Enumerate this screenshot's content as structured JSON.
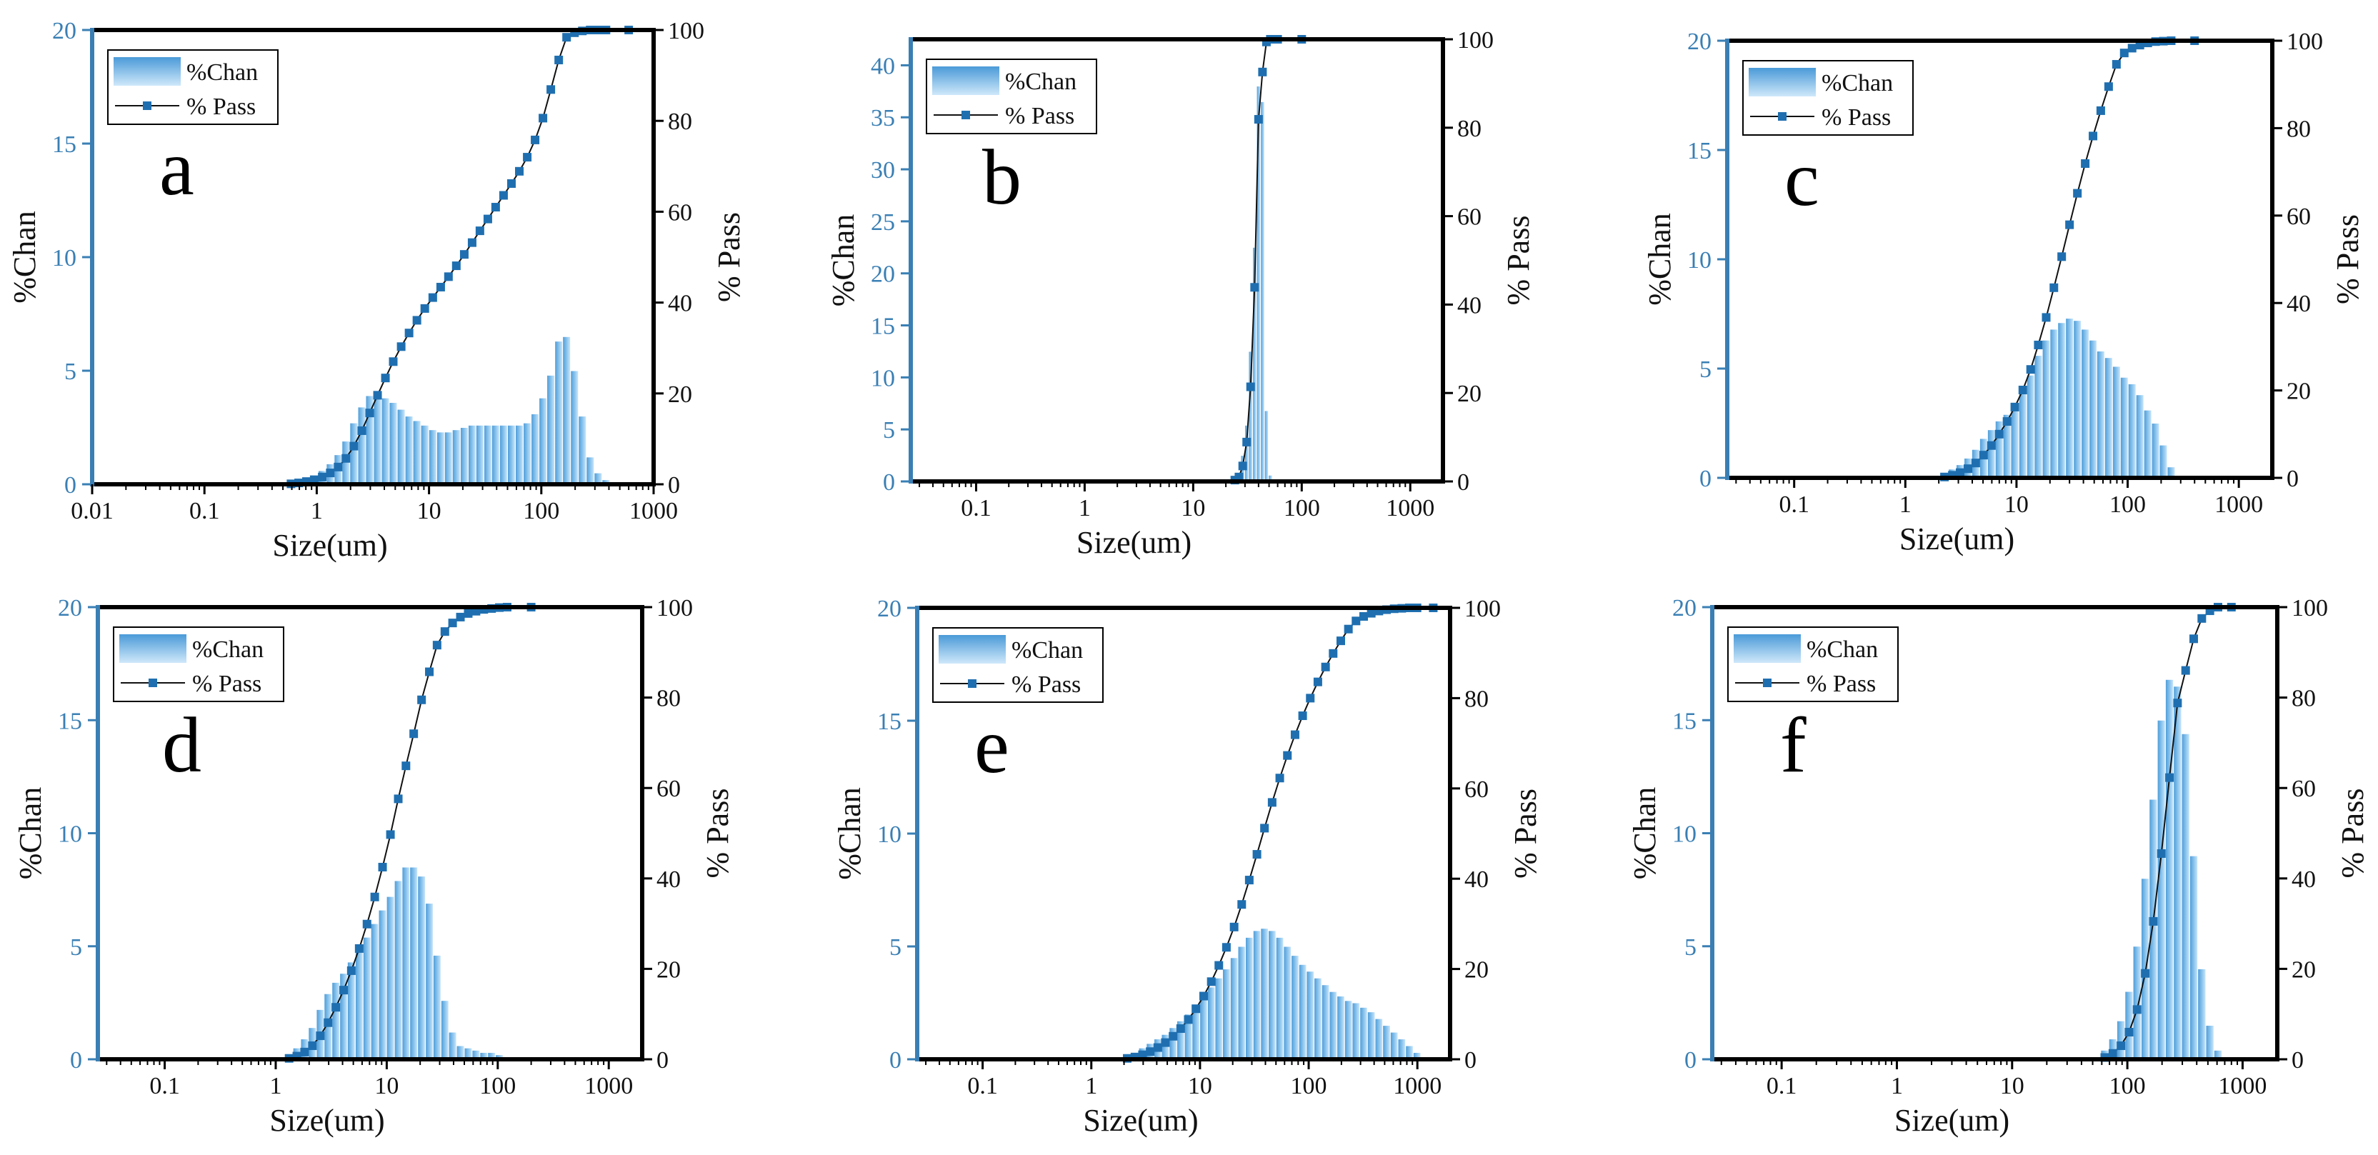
{
  "chart_data": [
    {
      "type": "bar+line",
      "panel_label": "a",
      "xlabel": "Size(um)",
      "ylabel_left": "%Chan",
      "ylabel_right": "% Pass",
      "xscale": "log",
      "xlim": [
        0.01,
        1000
      ],
      "xticks": [
        0.01,
        0.1,
        1,
        10,
        100,
        1000
      ],
      "xtick_labels": [
        "0.01",
        "0.1",
        "1",
        "10",
        "100",
        "1000"
      ],
      "ylim_left": [
        0,
        20
      ],
      "yticks_left": [
        "0",
        "5",
        "10",
        "15",
        "20"
      ],
      "ylim_right": [
        0,
        100
      ],
      "yticks_right": [
        "0",
        "20",
        "40",
        "60",
        "80",
        "100"
      ],
      "legend": [
        "%Chan",
        "% Pass"
      ],
      "series": [
        {
          "name": "%Chan",
          "kind": "bar",
          "x": [
            0.59,
            0.69,
            0.81,
            0.95,
            1.12,
            1.32,
            1.55,
            1.82,
            2.14,
            2.52,
            2.96,
            3.48,
            4.09,
            4.8,
            5.65,
            6.64,
            7.8,
            9.17,
            10.8,
            12.7,
            14.9,
            17.5,
            20.6,
            24.2,
            28.4,
            33.4,
            39.2,
            46.1,
            54.2,
            63.7,
            74.9,
            88,
            103.4,
            121.5,
            142.9,
            167.9,
            197.4,
            232,
            272.6,
            320.5,
            376.6
          ],
          "values": [
            0.1,
            0.2,
            0.3,
            0.4,
            0.6,
            0.9,
            1.3,
            1.9,
            2.7,
            3.4,
            3.9,
            3.9,
            3.8,
            3.6,
            3.3,
            3.0,
            2.8,
            2.6,
            2.4,
            2.3,
            2.3,
            2.4,
            2.5,
            2.6,
            2.6,
            2.6,
            2.6,
            2.6,
            2.6,
            2.6,
            2.7,
            3.1,
            3.8,
            4.8,
            6.3,
            6.5,
            5.0,
            3.0,
            1.2,
            0.5,
            0.2
          ]
        },
        {
          "name": "% Pass",
          "kind": "line",
          "x": [
            0.025,
            0.59,
            0.69,
            0.81,
            0.95,
            1.12,
            1.32,
            1.55,
            1.82,
            2.14,
            2.52,
            2.96,
            3.48,
            4.09,
            4.8,
            5.65,
            6.64,
            7.8,
            9.17,
            10.8,
            12.7,
            14.9,
            17.5,
            20.6,
            24.2,
            28.4,
            33.4,
            39.2,
            46.1,
            54.2,
            63.7,
            74.9,
            88,
            103.4,
            121.5,
            142.9,
            167.9,
            197.4,
            232,
            272.6,
            320.5,
            376.6,
            600,
            1000
          ],
          "values": [
            0,
            0.1,
            0.3,
            0.6,
            1.0,
            1.6,
            2.5,
            3.8,
            5.7,
            8.4,
            11.8,
            15.7,
            19.6,
            23.4,
            27.0,
            30.3,
            33.3,
            36.1,
            38.7,
            41.1,
            43.4,
            45.7,
            48.1,
            50.6,
            53.2,
            55.8,
            58.4,
            61.0,
            63.6,
            66.2,
            68.9,
            72.0,
            75.8,
            80.6,
            86.9,
            93.4,
            98.4,
            99.4,
            99.8,
            100,
            100,
            100,
            100,
            100
          ]
        }
      ]
    },
    {
      "type": "bar+line",
      "panel_label": "b",
      "xlabel": "Size(um)",
      "ylabel_left": "%Chan",
      "ylabel_right": "% Pass",
      "xscale": "log",
      "xlim": [
        0.025,
        2000
      ],
      "xticks": [
        0.1,
        1,
        10,
        100,
        1000
      ],
      "xtick_labels": [
        "0.1",
        "1",
        "10",
        "100",
        "1000"
      ],
      "ylim_left": [
        0,
        42.5
      ],
      "yticks_left": [
        "0",
        "5",
        "10",
        "15",
        "20",
        "25",
        "30",
        "35",
        "40"
      ],
      "ylim_right": [
        0,
        100
      ],
      "yticks_right": [
        "0",
        "20",
        "40",
        "60",
        "80",
        "100"
      ],
      "legend": [
        "%Chan",
        "% Pass"
      ],
      "series": [
        {
          "name": "%Chan",
          "kind": "bar",
          "x": [
            24.2,
            26.4,
            28.6,
            31.1,
            33.8,
            36.8,
            40,
            43.5,
            47.3,
            51.4
          ],
          "values": [
            0.3,
            0.7,
            2.5,
            5.4,
            12.5,
            22.5,
            38.0,
            36.5,
            6.8,
            0.6
          ]
        },
        {
          "name": "% Pass",
          "kind": "line",
          "x": [
            0.025,
            20,
            24.2,
            26.4,
            28.6,
            31.1,
            33.8,
            36.8,
            40,
            43.5,
            47.3,
            51.4,
            60,
            100,
            2000
          ],
          "values": [
            0,
            0,
            0.3,
            1.0,
            3.5,
            8.9,
            21.4,
            43.9,
            81.9,
            92.6,
            99.4,
            100,
            100,
            100,
            100
          ]
        }
      ]
    },
    {
      "type": "bar+line",
      "panel_label": "c",
      "xlabel": "Size(um)",
      "ylabel_left": "%Chan",
      "ylabel_right": "% Pass",
      "xscale": "log",
      "xlim": [
        0.025,
        2000
      ],
      "xticks": [
        0.1,
        1,
        10,
        100,
        1000
      ],
      "xtick_labels": [
        "0.1",
        "1",
        "10",
        "100",
        "1000"
      ],
      "ylim_left": [
        0,
        20
      ],
      "yticks_left": [
        "0",
        "5",
        "10",
        "15",
        "20"
      ],
      "ylim_right": [
        0,
        100
      ],
      "yticks_right": [
        "0",
        "20",
        "40",
        "60",
        "80",
        "100"
      ],
      "legend": [
        "%Chan",
        "% Pass"
      ],
      "series": [
        {
          "name": "%Chan",
          "kind": "bar",
          "x": [
            2.25,
            2.65,
            3.11,
            3.66,
            4.3,
            5.06,
            5.95,
            6.99,
            8.22,
            9.66,
            11.4,
            13.4,
            15.7,
            18.5,
            21.7,
            25.5,
            30,
            35.3,
            41.5,
            48.8,
            57.3,
            67.4,
            79.3,
            93.2,
            109.6,
            128.9,
            151.6,
            178.2,
            209.5,
            246.4
          ],
          "values": [
            0.2,
            0.4,
            0.6,
            0.9,
            1.3,
            1.8,
            2.2,
            2.6,
            2.9,
            3.3,
            3.9,
            4.7,
            5.6,
            6.3,
            6.8,
            7.1,
            7.3,
            7.2,
            6.8,
            6.3,
            5.8,
            5.5,
            5.1,
            4.6,
            4.3,
            3.8,
            3.1,
            2.5,
            1.5,
            0.5
          ]
        },
        {
          "name": "% Pass",
          "kind": "line",
          "x": [
            0.025,
            2.0,
            2.25,
            2.65,
            3.11,
            3.66,
            4.3,
            5.06,
            5.95,
            6.99,
            8.22,
            9.66,
            11.4,
            13.4,
            15.7,
            18.5,
            21.7,
            25.5,
            30,
            35.3,
            41.5,
            48.8,
            57.3,
            67.4,
            79.3,
            93.2,
            109.6,
            128.9,
            151.6,
            178.2,
            209.5,
            246.4,
            400,
            2000
          ],
          "values": [
            0,
            0,
            0.2,
            0.6,
            1.2,
            2.1,
            3.4,
            5.2,
            7.4,
            10.0,
            12.9,
            16.2,
            20.1,
            24.8,
            30.4,
            36.7,
            43.5,
            50.6,
            57.9,
            65.1,
            71.9,
            78.2,
            84.0,
            89.5,
            94.6,
            97.2,
            98.3,
            99.0,
            99.5,
            99.8,
            99.9,
            100,
            100,
            100
          ]
        }
      ]
    },
    {
      "type": "bar+line",
      "panel_label": "d",
      "xlabel": "Size(um)",
      "ylabel_left": "%Chan",
      "ylabel_right": "% Pass",
      "xscale": "log",
      "xlim": [
        0.025,
        2000
      ],
      "xticks": [
        0.1,
        1,
        10,
        100,
        1000
      ],
      "xtick_labels": [
        "0.1",
        "1",
        "10",
        "100",
        "1000"
      ],
      "ylim_left": [
        0,
        20
      ],
      "yticks_left": [
        "0",
        "5",
        "10",
        "15",
        "20"
      ],
      "ylim_right": [
        0,
        100
      ],
      "yticks_right": [
        "0",
        "20",
        "40",
        "60",
        "80",
        "100"
      ],
      "legend": [
        "%Chan",
        "% Pass"
      ],
      "series": [
        {
          "name": "%Chan",
          "kind": "bar",
          "x": [
            1.32,
            1.55,
            1.82,
            2.14,
            2.52,
            2.96,
            3.48,
            4.09,
            4.8,
            5.65,
            6.64,
            7.8,
            9.17,
            10.8,
            12.7,
            14.9,
            17.5,
            20.6,
            24.2,
            28.4,
            33.4,
            39.2,
            46.1,
            54.2,
            63.7,
            74.9,
            88,
            103.4,
            121.5
          ],
          "values": [
            0.2,
            0.5,
            0.9,
            1.4,
            2.2,
            2.9,
            3.4,
            3.8,
            4.3,
            4.9,
            5.4,
            6.0,
            6.6,
            7.2,
            7.9,
            8.5,
            8.5,
            8.1,
            6.9,
            4.6,
            2.6,
            1.2,
            0.6,
            0.5,
            0.4,
            0.3,
            0.3,
            0.2,
            0.1
          ]
        },
        {
          "name": "% Pass",
          "kind": "line",
          "x": [
            0.025,
            1.0,
            1.32,
            1.55,
            1.82,
            2.14,
            2.52,
            2.96,
            3.48,
            4.09,
            4.8,
            5.65,
            6.64,
            7.8,
            9.17,
            10.8,
            12.7,
            14.9,
            17.5,
            20.6,
            24.2,
            28.4,
            33.4,
            39.2,
            46.1,
            54.2,
            63.7,
            74.9,
            88,
            103.4,
            121.5,
            200,
            2000
          ],
          "values": [
            0,
            0,
            0.2,
            0.7,
            1.6,
            3.0,
            5.2,
            8.1,
            11.5,
            15.3,
            19.6,
            24.5,
            29.9,
            35.9,
            42.5,
            49.7,
            57.6,
            64.9,
            72.0,
            79.5,
            85.7,
            91.6,
            94.6,
            96.5,
            97.8,
            98.6,
            99.1,
            99.5,
            99.7,
            99.9,
            100,
            100,
            100
          ]
        }
      ]
    },
    {
      "type": "bar+line",
      "panel_label": "e",
      "xlabel": "Size(um)",
      "ylabel_left": "%Chan",
      "ylabel_right": "% Pass",
      "xscale": "log",
      "xlim": [
        0.025,
        2000
      ],
      "xticks": [
        0.1,
        1,
        10,
        100,
        1000
      ],
      "xtick_labels": [
        "0.1",
        "1",
        "10",
        "100",
        "1000"
      ],
      "ylim_left": [
        0,
        20
      ],
      "yticks_left": [
        "0",
        "5",
        "10",
        "15",
        "20"
      ],
      "ylim_right": [
        0,
        100
      ],
      "yticks_right": [
        "0",
        "20",
        "40",
        "60",
        "80",
        "100"
      ],
      "legend": [
        "%Chan",
        "% Pass"
      ],
      "series": [
        {
          "name": "%Chan",
          "kind": "bar",
          "x": [
            2.14,
            2.52,
            2.96,
            3.48,
            4.09,
            4.8,
            5.65,
            6.64,
            7.8,
            9.17,
            10.8,
            12.7,
            14.9,
            17.5,
            20.6,
            24.2,
            28.4,
            33.4,
            39.2,
            46.1,
            54.2,
            63.7,
            74.9,
            88,
            103.4,
            121.5,
            142.9,
            167.9,
            197.4,
            232,
            272.6,
            320.5,
            376.6,
            442.6,
            520.3,
            611.5,
            718.7,
            844.7,
            992.7
          ],
          "values": [
            0.2,
            0.3,
            0.5,
            0.7,
            0.9,
            1.1,
            1.4,
            1.7,
            2.0,
            2.4,
            2.8,
            3.2,
            3.6,
            4.0,
            4.5,
            5.0,
            5.4,
            5.7,
            5.8,
            5.7,
            5.4,
            5.0,
            4.6,
            4.2,
            3.9,
            3.6,
            3.3,
            3.0,
            2.8,
            2.6,
            2.5,
            2.3,
            2.1,
            1.8,
            1.5,
            1.2,
            0.9,
            0.6,
            0.3
          ]
        },
        {
          "name": "% Pass",
          "kind": "line",
          "x": [
            0.025,
            1.5,
            2.14,
            2.52,
            2.96,
            3.48,
            4.09,
            4.8,
            5.65,
            6.64,
            7.8,
            9.17,
            10.8,
            12.7,
            14.9,
            17.5,
            20.6,
            24.2,
            28.4,
            33.4,
            39.2,
            46.1,
            54.2,
            63.7,
            74.9,
            88,
            103.4,
            121.5,
            142.9,
            167.9,
            197.4,
            232,
            272.6,
            320.5,
            376.6,
            442.6,
            520.3,
            611.5,
            718.7,
            844.7,
            992.7,
            1400,
            2000
          ],
          "values": [
            0,
            0,
            0.2,
            0.5,
            1.0,
            1.7,
            2.6,
            3.7,
            5.1,
            6.8,
            8.8,
            11.2,
            14.0,
            17.2,
            20.8,
            24.8,
            29.3,
            34.3,
            39.7,
            45.4,
            51.2,
            56.9,
            62.3,
            67.3,
            71.9,
            76.1,
            80.0,
            83.6,
            86.9,
            89.9,
            92.7,
            95.3,
            97.1,
            98.1,
            98.8,
            99.3,
            99.6,
            99.8,
            99.9,
            100,
            100,
            100,
            100
          ]
        }
      ]
    },
    {
      "type": "bar+line",
      "panel_label": "f",
      "xlabel": "Size(um)",
      "ylabel_left": "%Chan",
      "ylabel_right": "% Pass",
      "xscale": "log",
      "xlim": [
        0.025,
        2000
      ],
      "xticks": [
        0.1,
        1,
        10,
        100,
        1000
      ],
      "xtick_labels": [
        "0.1",
        "1",
        "10",
        "100",
        "1000"
      ],
      "ylim_left": [
        0,
        20
      ],
      "yticks_left": [
        "0",
        "5",
        "10",
        "15",
        "20"
      ],
      "ylim_right": [
        0,
        100
      ],
      "yticks_right": [
        "0",
        "20",
        "40",
        "60",
        "80",
        "100"
      ],
      "legend": [
        "%Chan",
        "% Pass"
      ],
      "series": [
        {
          "name": "%Chan",
          "kind": "bar",
          "x": [
            63.7,
            74.9,
            88,
            103.4,
            121.5,
            142.9,
            167.9,
            197.4,
            232,
            272.6,
            320.5,
            376.6,
            442.6,
            520.3,
            611.5
          ],
          "values": [
            0.4,
            0.9,
            1.7,
            3.0,
            5.0,
            8.0,
            11.5,
            15.0,
            16.8,
            16.5,
            14.4,
            9.0,
            4.0,
            1.5,
            0.4
          ]
        },
        {
          "name": "% Pass",
          "kind": "line",
          "x": [
            0.025,
            55,
            63.7,
            74.9,
            88,
            103.4,
            121.5,
            142.9,
            167.9,
            197.4,
            232,
            272.6,
            320.5,
            376.6,
            442.6,
            520.3,
            611.5,
            800,
            2000
          ],
          "values": [
            0,
            0,
            0.4,
            1.3,
            3.0,
            6.0,
            11.0,
            19.0,
            30.5,
            45.5,
            62.3,
            78.8,
            86.0,
            93.0,
            97.5,
            99.2,
            100,
            100,
            100
          ]
        }
      ]
    }
  ]
}
